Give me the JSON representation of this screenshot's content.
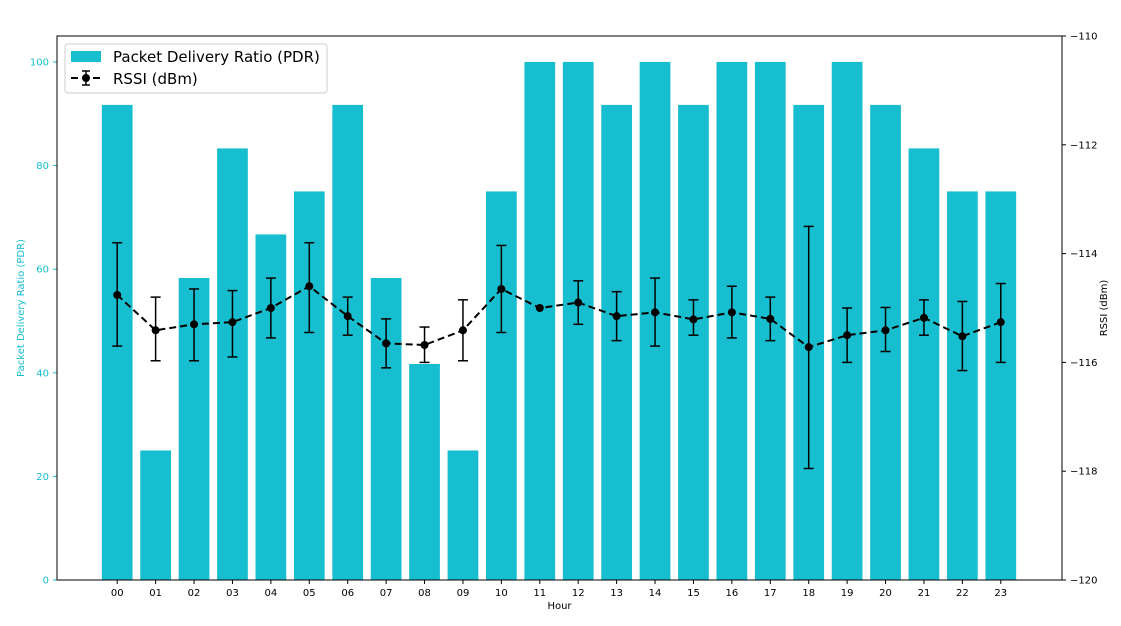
{
  "chart_data": {
    "type": "bar",
    "title": "",
    "xlabel": "Hour",
    "ylabel": "Packet Delivery Ratio (PDR)",
    "y2label": "RSSI (dBm)",
    "categories": [
      "00",
      "01",
      "02",
      "03",
      "04",
      "05",
      "06",
      "07",
      "08",
      "09",
      "10",
      "11",
      "12",
      "13",
      "14",
      "15",
      "16",
      "17",
      "18",
      "19",
      "20",
      "21",
      "22",
      "23"
    ],
    "ylim": [
      0,
      105
    ],
    "yticks": [
      0,
      20,
      40,
      60,
      80,
      100
    ],
    "y2lim": [
      -120,
      -110
    ],
    "y2ticks": [
      -120,
      -118,
      -116,
      -114,
      -112,
      -110
    ],
    "grid": false,
    "legend_position": "top-left",
    "series": [
      {
        "name": "Packet Delivery Ratio (PDR)",
        "type": "bar",
        "axis": "left",
        "color": "#17becf",
        "values": [
          91.7,
          25.0,
          58.3,
          83.3,
          66.7,
          75.0,
          91.7,
          58.3,
          41.7,
          25.0,
          75.0,
          100,
          100,
          91.7,
          100,
          91.7,
          100,
          100,
          91.7,
          100,
          91.7,
          83.3,
          75.0,
          75.0
        ]
      },
      {
        "name": "RSSI (dBm)",
        "type": "line",
        "axis": "right",
        "color": "#000000",
        "line_style": "dashed",
        "marker": "circle",
        "values": [
          -114.76,
          -115.41,
          -115.3,
          -115.26,
          -115.0,
          -114.6,
          -115.15,
          -115.65,
          -115.68,
          -115.41,
          -114.65,
          -115.0,
          -114.9,
          -115.15,
          -115.08,
          -115.21,
          -115.08,
          -115.2,
          -115.72,
          -115.5,
          -115.41,
          -115.18,
          -115.52,
          -115.26
        ],
        "error_low": [
          -115.7,
          -115.97,
          -115.97,
          -115.9,
          -115.55,
          -115.45,
          -115.5,
          -116.1,
          -116.0,
          -115.97,
          -115.45,
          -115.0,
          -115.3,
          -115.6,
          -115.7,
          -115.5,
          -115.55,
          -115.6,
          -117.95,
          -116.0,
          -115.8,
          -115.5,
          -116.15,
          -116.0
        ],
        "error_high": [
          -113.8,
          -114.8,
          -114.65,
          -114.68,
          -114.45,
          -113.8,
          -114.8,
          -115.2,
          -115.35,
          -114.85,
          -113.85,
          -115.0,
          -114.5,
          -114.7,
          -114.45,
          -114.85,
          -114.6,
          -114.8,
          -113.5,
          -115.0,
          -114.99,
          -114.85,
          -114.88,
          -114.55
        ]
      }
    ]
  }
}
